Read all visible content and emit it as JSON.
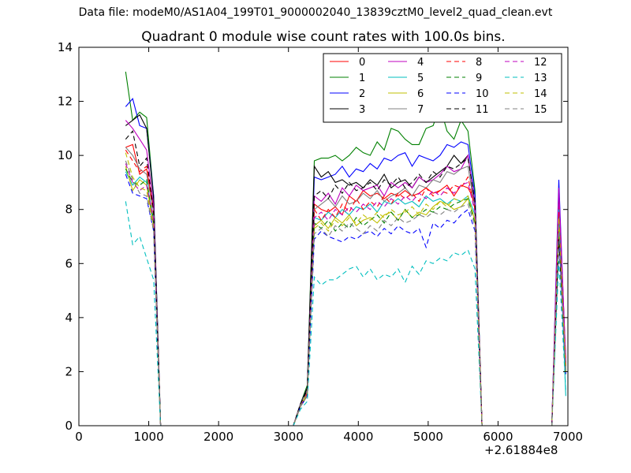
{
  "figure": {
    "suptitle": "Data file: modeM0/AS1A04_199T01_9000002040_13839cztM0_level2_quad_clean.evt",
    "x_offset_label": "+2.61884e8"
  },
  "chart_data": {
    "type": "line",
    "title": "Quadrant 0 module wise count rates with 100.0s bins.",
    "xlabel": "",
    "ylabel": "",
    "xlim": [
      0,
      7000
    ],
    "ylim": [
      0,
      14
    ],
    "xticks": [
      0,
      1000,
      2000,
      3000,
      4000,
      5000,
      6000,
      7000
    ],
    "yticks": [
      0,
      2,
      4,
      6,
      8,
      10,
      12,
      14
    ],
    "x_offset": 261884000,
    "grid": false,
    "legend": {
      "placement": "top-right",
      "columns": 4
    },
    "x": [
      670,
      770,
      870,
      970,
      1070,
      1170,
      1270,
      2000,
      3070,
      3170,
      3270,
      3370,
      3470,
      3570,
      3670,
      3770,
      3870,
      3970,
      4070,
      4170,
      4270,
      4370,
      4470,
      4570,
      4670,
      4770,
      4870,
      4970,
      5070,
      5170,
      5270,
      5370,
      5470,
      5570,
      5670,
      5770,
      5870,
      6000,
      6770,
      6870,
      6970
    ],
    "series": [
      {
        "name": "0",
        "color": "#ff0000",
        "style": "solid",
        "values": [
          10.3,
          10.4,
          9.3,
          9.5,
          8.0,
          0,
          0,
          0,
          0,
          0.8,
          1.3,
          8.2,
          8.0,
          7.9,
          8.1,
          7.8,
          8.5,
          8.3,
          8.7,
          8.5,
          8.6,
          8.4,
          8.6,
          8.5,
          8.7,
          8.5,
          8.6,
          8.8,
          8.6,
          8.7,
          8.9,
          8.5,
          8.9,
          8.8,
          8.3,
          0,
          0,
          0,
          0,
          8.4,
          2.5
        ]
      },
      {
        "name": "1",
        "color": "#008000",
        "style": "solid",
        "values": [
          13.1,
          11.3,
          11.6,
          11.4,
          8.5,
          0,
          0,
          0,
          0,
          0.8,
          1.5,
          9.8,
          9.9,
          9.9,
          10.0,
          9.8,
          10.0,
          10.3,
          10.1,
          10.0,
          10.5,
          10.2,
          11.0,
          10.9,
          10.6,
          10.4,
          10.4,
          11.0,
          11.1,
          11.8,
          10.9,
          10.6,
          11.3,
          10.9,
          8.7,
          0,
          0,
          0,
          0,
          7.5,
          2.0
        ]
      },
      {
        "name": "2",
        "color": "#0000ff",
        "style": "solid",
        "values": [
          11.8,
          12.1,
          11.1,
          11.0,
          8.5,
          0,
          0,
          0,
          0,
          0.8,
          1.4,
          9.2,
          9.1,
          9.2,
          9.3,
          9.6,
          9.2,
          9.5,
          9.4,
          9.7,
          9.5,
          9.9,
          9.8,
          10.0,
          10.1,
          9.6,
          10.0,
          9.9,
          9.8,
          10.0,
          10.4,
          10.3,
          10.5,
          10.4,
          8.5,
          0,
          0,
          0,
          0,
          9.1,
          2.2
        ]
      },
      {
        "name": "3",
        "color": "#000000",
        "style": "solid",
        "values": [
          11.1,
          11.3,
          11.5,
          11.0,
          8.4,
          0,
          0,
          0,
          0,
          0.8,
          1.4,
          9.6,
          9.2,
          9.4,
          9.0,
          9.1,
          8.9,
          9.0,
          8.8,
          9.1,
          8.9,
          9.3,
          8.8,
          9.0,
          9.1,
          8.8,
          9.2,
          9.0,
          9.2,
          9.4,
          9.6,
          10.0,
          9.7,
          10.0,
          8.1,
          0,
          0,
          0,
          0,
          7.8,
          2.3
        ]
      },
      {
        "name": "4",
        "color": "#bf00bf",
        "style": "solid",
        "values": [
          11.3,
          11.0,
          10.6,
          10.2,
          8.1,
          0,
          0,
          0,
          0,
          0.8,
          1.3,
          8.5,
          8.3,
          8.6,
          8.2,
          8.8,
          8.5,
          8.9,
          8.7,
          8.8,
          8.9,
          8.5,
          9.0,
          8.8,
          9.0,
          8.8,
          9.2,
          9.0,
          9.1,
          9.3,
          9.6,
          9.4,
          9.5,
          10.0,
          8.2,
          0,
          0,
          0,
          0,
          8.8,
          2.4
        ]
      },
      {
        "name": "5",
        "color": "#00bfbf",
        "style": "solid",
        "values": [
          9.4,
          8.9,
          9.2,
          9.0,
          7.6,
          0,
          0,
          0,
          0,
          0.7,
          1.2,
          7.7,
          7.6,
          7.9,
          7.7,
          8.0,
          7.8,
          8.1,
          8.0,
          8.2,
          7.9,
          8.3,
          8.2,
          8.4,
          8.2,
          8.3,
          8.1,
          8.5,
          8.3,
          8.4,
          8.2,
          8.4,
          8.3,
          8.5,
          7.8,
          0,
          0,
          0,
          0,
          8.0,
          1.1
        ]
      },
      {
        "name": "6",
        "color": "#bfbf00",
        "style": "solid",
        "values": [
          9.6,
          8.7,
          9.1,
          8.9,
          7.4,
          0,
          0,
          0,
          0,
          0.7,
          1.2,
          7.4,
          7.6,
          7.3,
          7.7,
          7.5,
          7.8,
          7.4,
          7.6,
          7.7,
          7.5,
          7.8,
          7.9,
          7.6,
          8.0,
          7.7,
          7.9,
          7.8,
          8.1,
          8.3,
          8.2,
          8.0,
          8.1,
          8.4,
          7.6,
          0,
          0,
          0,
          0,
          7.2,
          2.1
        ]
      },
      {
        "name": "7",
        "color": "#808080",
        "style": "solid",
        "values": [
          10.3,
          10.0,
          9.5,
          9.3,
          7.9,
          0,
          0,
          0,
          0,
          0.8,
          1.3,
          8.0,
          8.2,
          8.4,
          8.1,
          8.5,
          8.2,
          8.3,
          8.6,
          8.4,
          8.7,
          8.3,
          8.5,
          8.6,
          8.8,
          8.5,
          8.9,
          8.8,
          9.1,
          9.0,
          9.4,
          9.3,
          9.5,
          9.6,
          8.0,
          0,
          0,
          0,
          0,
          7.0,
          2.0
        ]
      },
      {
        "name": "8",
        "color": "#ff0000",
        "style": "dashed",
        "values": [
          10.2,
          9.8,
          9.4,
          9.6,
          7.8,
          0,
          0,
          0,
          0,
          0.7,
          1.2,
          8.0,
          7.6,
          8.0,
          7.7,
          8.2,
          7.9,
          8.4,
          8.0,
          8.3,
          8.1,
          8.5,
          8.2,
          8.6,
          8.4,
          8.6,
          8.3,
          8.8,
          8.5,
          8.7,
          8.6,
          8.9,
          8.8,
          9.2,
          8.0,
          0,
          0,
          0,
          0,
          7.9,
          2.2
        ]
      },
      {
        "name": "9",
        "color": "#008000",
        "style": "dashed",
        "values": [
          9.5,
          9.0,
          8.9,
          9.1,
          7.5,
          0,
          0,
          0,
          0,
          0.7,
          1.1,
          7.5,
          7.3,
          7.6,
          7.2,
          7.5,
          7.3,
          7.7,
          7.4,
          7.6,
          7.8,
          7.5,
          7.9,
          7.6,
          8.0,
          7.7,
          7.8,
          8.0,
          7.9,
          8.1,
          8.0,
          8.2,
          8.3,
          8.4,
          7.5,
          0,
          0,
          0,
          0,
          7.4,
          2.0
        ]
      },
      {
        "name": "10",
        "color": "#0000ff",
        "style": "dashed",
        "values": [
          9.3,
          8.6,
          8.5,
          8.4,
          7.2,
          0,
          0,
          0,
          0,
          0.7,
          1.1,
          6.9,
          7.2,
          7.0,
          6.9,
          6.8,
          7.0,
          6.9,
          7.1,
          7.2,
          7.0,
          7.3,
          7.1,
          7.4,
          7.2,
          7.1,
          7.3,
          6.6,
          7.5,
          7.3,
          7.6,
          7.5,
          7.8,
          8.0,
          7.2,
          0,
          0,
          0,
          0,
          7.1,
          1.9
        ]
      },
      {
        "name": "11",
        "color": "#000000",
        "style": "dashed",
        "values": [
          10.6,
          10.9,
          9.6,
          9.9,
          7.9,
          0,
          0,
          0,
          0,
          0.8,
          1.3,
          8.5,
          8.7,
          8.4,
          8.9,
          8.6,
          9.0,
          8.7,
          8.8,
          9.0,
          8.7,
          9.1,
          8.9,
          9.2,
          8.8,
          9.0,
          9.3,
          9.0,
          9.4,
          9.2,
          9.6,
          9.5,
          9.7,
          9.9,
          8.3,
          0,
          0,
          0,
          0,
          6.9,
          2.1
        ]
      },
      {
        "name": "12",
        "color": "#bf00bf",
        "style": "dashed",
        "values": [
          9.7,
          9.0,
          8.7,
          8.9,
          7.6,
          0,
          0,
          0,
          0,
          0.7,
          1.2,
          7.7,
          7.9,
          7.6,
          8.0,
          7.8,
          8.1,
          7.9,
          8.2,
          8.0,
          8.3,
          8.1,
          8.4,
          8.2,
          8.5,
          8.3,
          8.6,
          8.4,
          8.7,
          8.5,
          8.8,
          8.6,
          8.9,
          9.0,
          7.9,
          0,
          0,
          0,
          0,
          8.7,
          2.3
        ]
      },
      {
        "name": "13",
        "color": "#00bfbf",
        "style": "dashed",
        "values": [
          8.3,
          6.7,
          7.0,
          6.2,
          5.4,
          0,
          0,
          0,
          0,
          0.6,
          0.9,
          5.5,
          5.2,
          5.4,
          5.4,
          5.6,
          5.8,
          5.9,
          5.5,
          5.8,
          5.4,
          5.6,
          5.5,
          5.8,
          5.3,
          5.9,
          5.6,
          6.1,
          6.0,
          6.2,
          6.1,
          6.4,
          6.3,
          6.5,
          5.8,
          0,
          0,
          0,
          0,
          6.1,
          1.3
        ]
      },
      {
        "name": "14",
        "color": "#bfbf00",
        "style": "dashed",
        "values": [
          10.1,
          9.2,
          8.8,
          8.7,
          7.3,
          0,
          0,
          0,
          0,
          0.7,
          1.2,
          7.3,
          7.5,
          7.2,
          7.6,
          7.4,
          7.7,
          7.5,
          7.8,
          7.6,
          7.9,
          7.7,
          8.0,
          7.8,
          7.9,
          8.1,
          7.8,
          8.2,
          8.0,
          8.3,
          8.1,
          8.4,
          8.3,
          8.5,
          7.6,
          0,
          0,
          0,
          0,
          7.7,
          2.0
        ]
      },
      {
        "name": "15",
        "color": "#808080",
        "style": "dashed",
        "values": [
          9.8,
          9.1,
          8.6,
          8.5,
          7.2,
          0,
          0,
          0,
          0,
          0.7,
          1.1,
          7.1,
          7.3,
          7.0,
          7.4,
          7.2,
          7.5,
          7.3,
          7.1,
          7.4,
          7.2,
          7.6,
          7.4,
          7.7,
          7.5,
          7.6,
          7.8,
          7.7,
          7.9,
          7.8,
          8.0,
          7.9,
          8.1,
          8.2,
          7.4,
          0,
          0,
          0,
          0,
          7.5,
          1.9
        ]
      }
    ]
  }
}
